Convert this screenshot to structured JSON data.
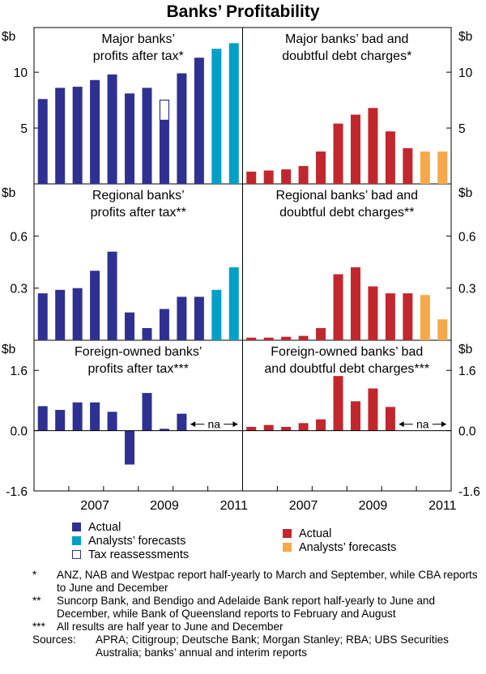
{
  "title": "Banks’ Profitability",
  "colors": {
    "actual_profit": "#2e3192",
    "forecast_profit": "#00a0c6",
    "actual_bad_debt": "#c1272d",
    "forecast_bad_debt": "#f7a84a",
    "tax_reassessment": "#2e3192"
  },
  "chart_data": [
    {
      "type": "bar",
      "panel": "major-profits",
      "title_lines": [
        "Major banks’",
        "profits after tax*"
      ],
      "unit": "$b",
      "ylim": [
        0,
        14
      ],
      "yticks": [
        5,
        10
      ],
      "ytick_labels": [
        "5",
        "10"
      ],
      "x": [
        2005.5,
        2006,
        2006.5,
        2007,
        2007.5,
        2008,
        2008.5,
        2009,
        2009.5,
        2010,
        2010.5,
        2011
      ],
      "values": [
        7.6,
        8.6,
        8.7,
        9.3,
        9.8,
        8.1,
        8.6,
        5.7,
        9.9,
        11.3,
        12.1,
        12.6
      ],
      "forecast_from_index": 10,
      "tax_reassessment": {
        "x": 2009,
        "value": 1.8
      }
    },
    {
      "type": "bar",
      "panel": "major-bad-debt",
      "title_lines": [
        "Major banks’ bad and",
        "doubtful debt charges*"
      ],
      "unit": "$b",
      "ylim": [
        0,
        14
      ],
      "yticks": [
        5,
        10
      ],
      "ytick_labels": [
        "5",
        "10"
      ],
      "x": [
        2005.5,
        2006,
        2006.5,
        2007,
        2007.5,
        2008,
        2008.5,
        2009,
        2009.5,
        2010,
        2010.5,
        2011
      ],
      "values": [
        1.1,
        1.2,
        1.3,
        1.6,
        2.9,
        5.4,
        6.2,
        6.8,
        4.7,
        3.2,
        2.9,
        2.9
      ],
      "forecast_from_index": 10
    },
    {
      "type": "bar",
      "panel": "regional-profits",
      "title_lines": [
        "Regional banks’",
        "profits after tax**"
      ],
      "unit": "$b",
      "ylim": [
        0,
        0.9
      ],
      "yticks": [
        0.3,
        0.6
      ],
      "ytick_labels": [
        "0.3",
        "0.6"
      ],
      "x": [
        2005.5,
        2006,
        2006.5,
        2007,
        2007.5,
        2008,
        2008.5,
        2009,
        2009.5,
        2010,
        2010.5,
        2011
      ],
      "values": [
        0.27,
        0.29,
        0.3,
        0.4,
        0.51,
        0.16,
        0.07,
        0.18,
        0.25,
        0.25,
        0.29,
        0.42
      ],
      "forecast_from_index": 10
    },
    {
      "type": "bar",
      "panel": "regional-bad-debt",
      "title_lines": [
        "Regional banks’ bad and",
        "doubtful debt charges**"
      ],
      "unit": "$b",
      "ylim": [
        0,
        0.9
      ],
      "yticks": [
        0.3,
        0.6
      ],
      "ytick_labels": [
        "0.3",
        "0.6"
      ],
      "x": [
        2005.5,
        2006,
        2006.5,
        2007,
        2007.5,
        2008,
        2008.5,
        2009,
        2009.5,
        2010,
        2010.5,
        2011
      ],
      "values": [
        0.015,
        0.015,
        0.02,
        0.025,
        0.07,
        0.38,
        0.42,
        0.31,
        0.27,
        0.27,
        0.26,
        0.12
      ],
      "forecast_from_index": 10
    },
    {
      "type": "bar",
      "panel": "foreign-profits",
      "title_lines": [
        "Foreign-owned banks’",
        "profits after tax***"
      ],
      "unit": "$b",
      "ylim": [
        -1.6,
        2.4
      ],
      "yticks": [
        -1.6,
        0,
        1.6
      ],
      "ytick_labels": [
        "-1.6",
        "0.0",
        "1.6"
      ],
      "x": [
        2005.5,
        2006,
        2006.5,
        2007,
        2007.5,
        2008,
        2008.5,
        2009,
        2009.5
      ],
      "values": [
        0.65,
        0.55,
        0.75,
        0.75,
        0.5,
        -0.9,
        1.0,
        0.05,
        0.45
      ],
      "na_label": "na"
    },
    {
      "type": "bar",
      "panel": "foreign-bad-debt",
      "title_lines": [
        "Foreign-owned banks’ bad",
        "and doubtful debt charges***"
      ],
      "unit": "$b",
      "ylim": [
        -1.6,
        2.4
      ],
      "yticks": [
        -1.6,
        0,
        1.6
      ],
      "ytick_labels": [
        "-1.6",
        "0.0",
        "1.6"
      ],
      "x": [
        2005.5,
        2006,
        2006.5,
        2007,
        2007.5,
        2008,
        2008.5,
        2009,
        2009.5
      ],
      "values": [
        0.1,
        0.15,
        0.1,
        0.2,
        0.3,
        1.45,
        0.78,
        1.12,
        0.63
      ],
      "na_label": "na"
    }
  ],
  "x_axis": {
    "range": [
      2005.25,
      2011.25
    ],
    "ticks": [
      2007,
      2009,
      2011
    ],
    "tick_labels": [
      "2007",
      "2009",
      "2011"
    ]
  },
  "legend_left": [
    "Actual",
    "Analysts’ forecasts",
    "Tax reassessments"
  ],
  "legend_right": [
    "Actual",
    "Analysts’ forecasts"
  ],
  "notes": [
    {
      "mark": "*",
      "text": "ANZ, NAB and Westpac report half-yearly to March and September, while CBA reports to June and December"
    },
    {
      "mark": "**",
      "text": "Suncorp Bank, and Bendigo and Adelaide Bank report half-yearly to June and December, while Bank of Queensland reports to February and August"
    },
    {
      "mark": "***",
      "text": "All results are half year to June and December"
    }
  ],
  "sources_label": "Sources:",
  "sources_text": "APRA; Citigroup; Deutsche Bank; Morgan Stanley; RBA; UBS Securities Australia; banks’ annual and interim reports"
}
